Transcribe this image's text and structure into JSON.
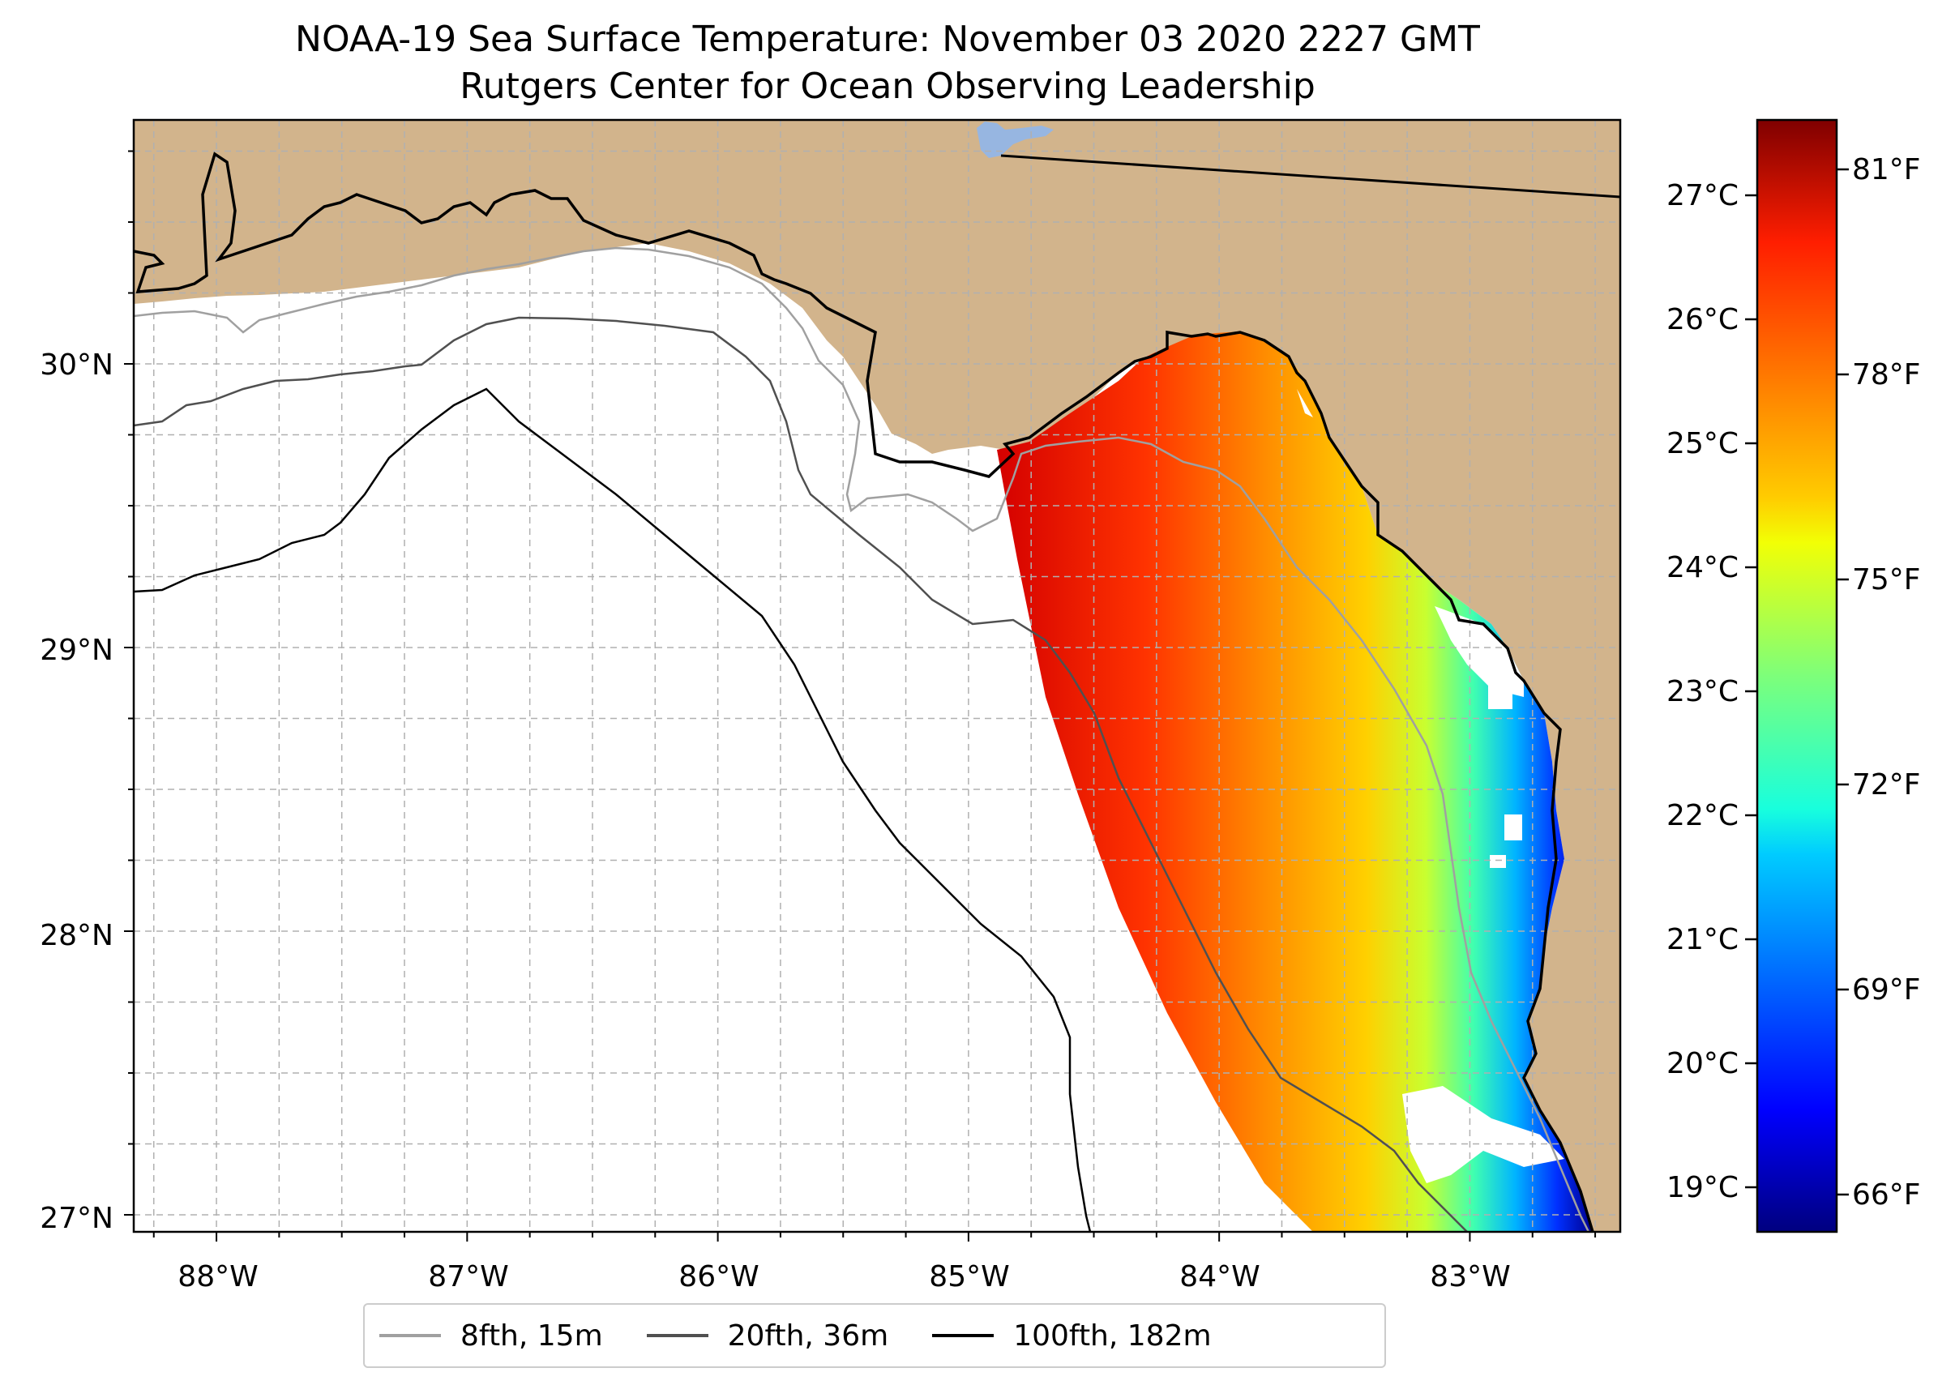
{
  "title": {
    "line1": "NOAA-19 Sea Surface Temperature: November 03 2020 2227 GMT",
    "line2": "Rutgers Center for Ocean Observing Leadership"
  },
  "map": {
    "land_color": "#d2b48c",
    "ocean_color": "#ffffff",
    "lake_color": "#97b6e1",
    "lon_ticks": [
      "88°W",
      "87°W",
      "86°W",
      "85°W",
      "84°W",
      "83°W"
    ],
    "lat_ticks": [
      "30°N",
      "29°N",
      "28°N",
      "27°N"
    ],
    "extent": {
      "lon_min": -88.33,
      "lon_max": -82.4,
      "lat_min": 26.94,
      "lat_max": 30.86
    },
    "gridlines": true
  },
  "colorbar": {
    "colormap": "jet",
    "celsius_labels": [
      "27°C",
      "26°C",
      "25°C",
      "24°C",
      "23°C",
      "22°C",
      "21°C",
      "20°C",
      "19°C"
    ],
    "fahrenheit_labels": [
      "81°F",
      "78°F",
      "75°F",
      "72°F",
      "69°F",
      "66°F"
    ],
    "range_celsius": [
      18.6,
      27.6
    ]
  },
  "legend": {
    "items": [
      {
        "label": "8fth, 15m",
        "color": "#a0a0a0"
      },
      {
        "label": "20fth, 36m",
        "color": "#505050"
      },
      {
        "label": "100fth, 182m",
        "color": "#000000"
      }
    ]
  }
}
